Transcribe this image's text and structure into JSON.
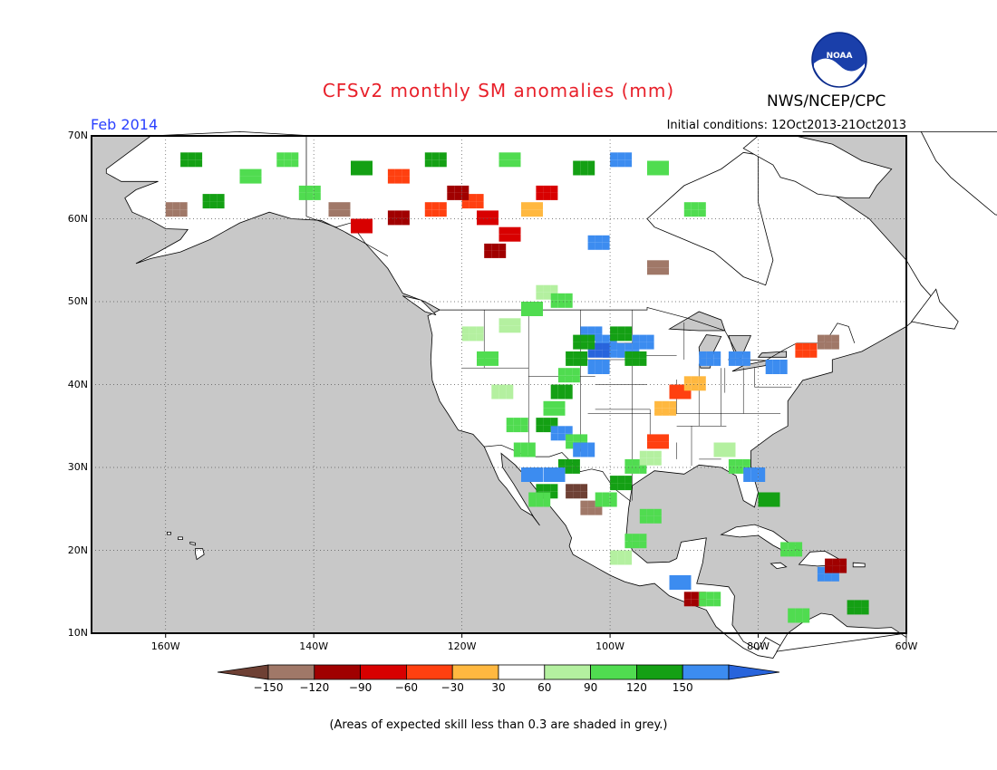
{
  "header": {
    "title": "CFSv2 monthly SM anomalies (mm)",
    "agency": "NWS/NCEP/CPC",
    "logo_text": "NOAA",
    "month": "Feb 2014",
    "initial_conditions": "Initial conditions: 12Oct2013-21Oct2013"
  },
  "map": {
    "lat_labels": [
      "70N",
      "60N",
      "50N",
      "40N",
      "30N",
      "20N",
      "10N"
    ],
    "lon_labels": [
      "160W",
      "140W",
      "120W",
      "100W",
      "80W",
      "60W"
    ],
    "lat_range": [
      10,
      70
    ],
    "lon_range": [
      -170,
      -60
    ],
    "ocean_color": "#c8c8c8",
    "land_color": "#ffffff"
  },
  "colorbar": {
    "labels": [
      "-150",
      "-120",
      "-90",
      "-60",
      "-30",
      "30",
      "60",
      "90",
      "120",
      "150"
    ],
    "colors": [
      "#6e4034",
      "#a07868",
      "#a00000",
      "#d80000",
      "#ff4010",
      "#ffb840",
      "#ffffff",
      "#b4f0a0",
      "#50dc50",
      "#14a014",
      "#3c8cf0",
      "#2864dc"
    ]
  },
  "footer": {
    "note": "(Areas of expected skill less than 0.3 are shaded in grey.)"
  }
}
